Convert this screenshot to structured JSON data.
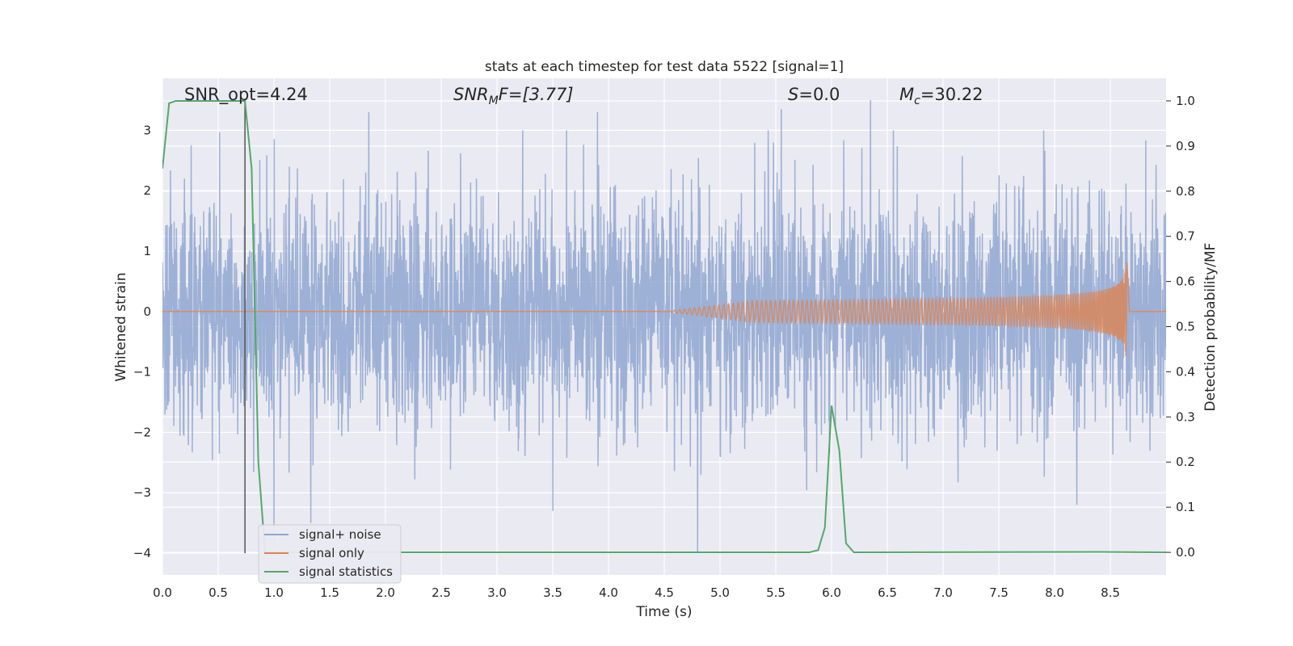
{
  "chart_data": {
    "type": "line",
    "title": "stats at each timestep for test data 5522 [signal=1]",
    "xlabel": "Time (s)",
    "ylabel_left": "Whitened strain",
    "ylabel_right": "Detection probability/MF",
    "xlim": [
      0,
      9.0
    ],
    "ylim_left": [
      -4.36,
      3.86
    ],
    "ylim_right": [
      -0.05,
      1.05
    ],
    "x_ticks": [
      0.0,
      0.5,
      1.0,
      1.5,
      2.0,
      2.5,
      3.0,
      3.5,
      4.0,
      4.5,
      5.0,
      5.5,
      6.0,
      6.5,
      7.0,
      7.5,
      8.0,
      8.5
    ],
    "x_tick_labels": [
      "0.0",
      "0.5",
      "1.0",
      "1.5",
      "2.0",
      "2.5",
      "3.0",
      "3.5",
      "4.0",
      "4.5",
      "5.0",
      "5.5",
      "6.0",
      "6.5",
      "7.0",
      "7.5",
      "8.0",
      "8.5"
    ],
    "y_left_ticks": [
      -4,
      -3,
      -2,
      -1,
      0,
      1,
      2,
      3
    ],
    "y_left_tick_labels": [
      "−4",
      "−3",
      "−2",
      "−1",
      "0",
      "1",
      "2",
      "3"
    ],
    "y_right_ticks": [
      0.0,
      0.1,
      0.2,
      0.3,
      0.4,
      0.5,
      0.6,
      0.7,
      0.8,
      0.9,
      1.0
    ],
    "y_right_tick_labels": [
      "0.0",
      "0.1",
      "0.2",
      "0.3",
      "0.4",
      "0.5",
      "0.6",
      "0.7",
      "0.8",
      "0.9",
      "1.0"
    ],
    "grid": true,
    "legend_placement": "lower-left",
    "annotations": {
      "snr_opt": "SNR_opt=4.24",
      "snr_mf_main": "SNR",
      "snr_mf_sub": "M",
      "snr_mf_rest": "F=[3.77]",
      "s_main": "S",
      "s_rest": "=0.0",
      "mc_main": "M",
      "mc_sub": "c",
      "mc_rest": "=30.22"
    },
    "vertical_marker_x": 0.74,
    "series": [
      {
        "name": "signal+ noise",
        "color": "#8fa6d0",
        "description_only": false,
        "noise_sigma": 1.0,
        "x_range": [
          0,
          9.0
        ],
        "peaks": [
          {
            "x": 1.85,
            "y": 3.3
          },
          {
            "x": 5.55,
            "y": 3.35
          },
          {
            "x": 6.35,
            "y": 3.5
          },
          {
            "x": 3.9,
            "y": 3.3
          },
          {
            "x": 3.5,
            "y": -3.3
          },
          {
            "x": 4.8,
            "y": -4.0
          },
          {
            "x": 1.0,
            "y": -3.9
          },
          {
            "x": 1.33,
            "y": -3.5
          },
          {
            "x": 8.2,
            "y": -3.2
          }
        ]
      },
      {
        "name": "signal only",
        "color": "#dd8452",
        "x_start": 4.5,
        "merger_x": 8.65,
        "peak_amplitude": 0.98
      },
      {
        "name": "signal statistics",
        "color": "#55a868",
        "axis": "right",
        "x": [
          0.0,
          0.06,
          0.12,
          0.6,
          0.74,
          0.8,
          0.86,
          0.92,
          5.8,
          5.88,
          5.94,
          6.0,
          6.07,
          6.13,
          6.2,
          8.4,
          9.0
        ],
        "y": [
          0.85,
          0.995,
          1.0,
          1.0,
          1.0,
          0.85,
          0.2,
          0.0,
          0.0,
          0.005,
          0.055,
          0.325,
          0.225,
          0.02,
          0.0,
          0.001,
          0.0
        ]
      }
    ]
  }
}
